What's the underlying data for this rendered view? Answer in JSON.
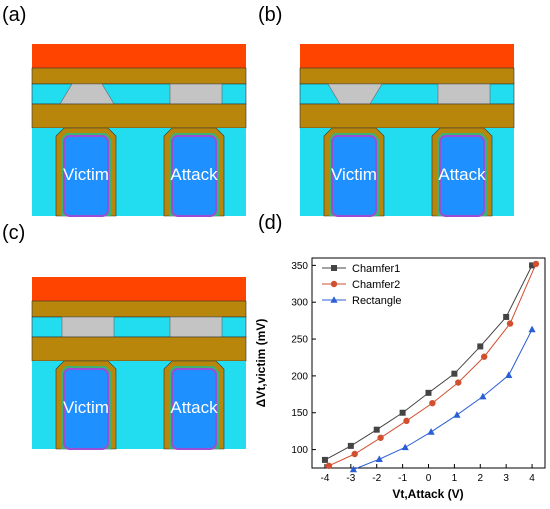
{
  "panels": {
    "a": {
      "label": "(a)",
      "left_cell": "Victim",
      "right_cell": "Attack",
      "variant": "chamfer1"
    },
    "b": {
      "label": "(b)",
      "left_cell": "Victim",
      "right_cell": "Attack",
      "variant": "chamfer2"
    },
    "c": {
      "label": "(c)",
      "left_cell": "Victim",
      "right_cell": "Attack",
      "variant": "rectangle"
    },
    "d": {
      "label": "(d)"
    }
  },
  "colors": {
    "top_layer": "#ff4400",
    "metal_layer": "#b8860b",
    "cyan": "#22ddf0",
    "gray_plug": "#c4c4c4",
    "cell_blue": "#1e90ff",
    "cell_border": "#9b4dd6",
    "cell_liner": "#3cb371"
  },
  "chart_data": {
    "type": "line",
    "xlabel": "Vt,Attack (V)",
    "ylabel": "ΔVt,victim (mV)",
    "xlim": [
      -4.5,
      4.5
    ],
    "ylim": [
      75,
      360
    ],
    "xticks": [
      -4,
      -3,
      -2,
      -1,
      0,
      1,
      2,
      3,
      4
    ],
    "yticks": [
      100,
      150,
      200,
      250,
      300,
      350
    ],
    "legend_position": "top-left",
    "series": [
      {
        "name": "Chamfer1",
        "marker": "square",
        "color": "#444444",
        "x": [
          -4,
          -3,
          -2,
          -1,
          0,
          1,
          2,
          3,
          4
        ],
        "y": [
          86,
          105,
          127,
          150,
          177,
          203,
          240,
          280,
          350
        ]
      },
      {
        "name": "Chamfer2",
        "marker": "circle",
        "color": "#d05030",
        "x": [
          -3.85,
          -2.85,
          -1.85,
          -0.85,
          0.15,
          1.15,
          2.15,
          3.15,
          4.15
        ],
        "y": [
          78,
          94,
          116,
          139,
          163,
          191,
          226,
          271,
          352
        ]
      },
      {
        "name": "Rectangle",
        "marker": "triangle",
        "color": "#2a5fd6",
        "x": [
          -2.9,
          -1.9,
          -0.9,
          0.1,
          1.1,
          2.1,
          3.1,
          4.0
        ],
        "y": [
          73,
          87,
          103,
          124,
          147,
          172,
          201,
          263
        ]
      }
    ]
  }
}
